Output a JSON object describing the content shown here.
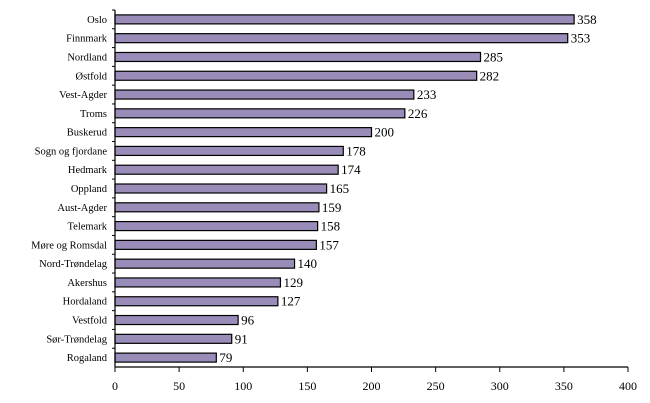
{
  "chart_data": {
    "type": "bar",
    "orientation": "horizontal",
    "categories": [
      "Oslo",
      "Finnmark",
      "Nordland",
      "Østfold",
      "Vest-Agder",
      "Troms",
      "Buskerud",
      "Sogn og fjordane",
      "Hedmark",
      "Oppland",
      "Aust-Agder",
      "Telemark",
      "Møre og Romsdal",
      "Nord-Trøndelag",
      "Akershus",
      "Hordaland",
      "Vestfold",
      "Sør-Trøndelag",
      "Rogaland"
    ],
    "values": [
      358,
      353,
      285,
      282,
      233,
      226,
      200,
      178,
      174,
      165,
      159,
      158,
      157,
      140,
      129,
      127,
      96,
      91,
      79
    ],
    "title": "",
    "xlabel": "",
    "ylabel": "",
    "xlim": [
      0,
      400
    ],
    "x_ticks": [
      0,
      50,
      100,
      150,
      200,
      250,
      300,
      350,
      400
    ],
    "grid": false,
    "legend": "none",
    "bar_color": "#9a8cb8",
    "bar_edge_color": "#000000"
  }
}
